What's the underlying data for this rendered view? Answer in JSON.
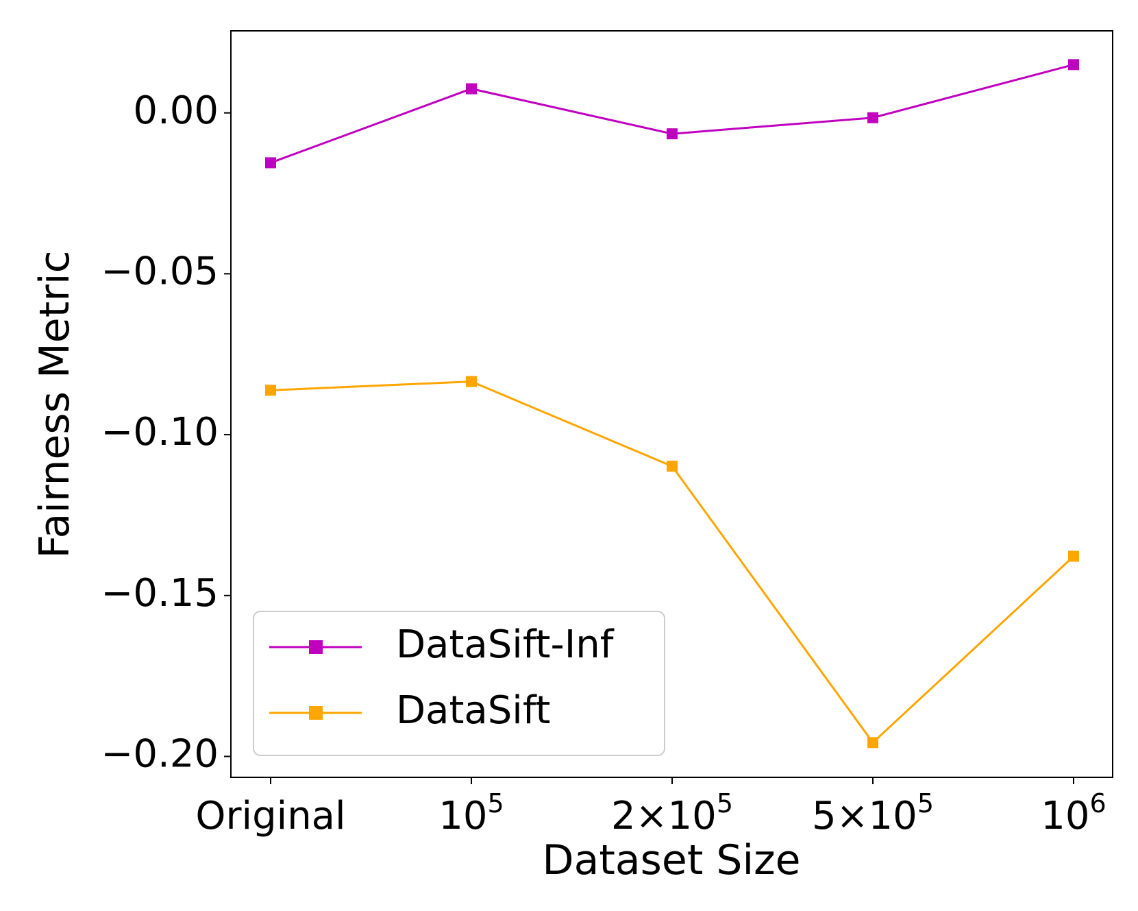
{
  "chart_data": {
    "type": "line",
    "title": "",
    "xlabel": "Dataset Size",
    "ylabel": "Fairness Metric",
    "categories": [
      "Original",
      "10^5",
      "2×10^5",
      "5×10^5",
      "10^6"
    ],
    "x_tick_labels": [
      {
        "base": "Original",
        "sup": ""
      },
      {
        "base": "10",
        "sup": "5"
      },
      {
        "base": "2×10",
        "sup": "5"
      },
      {
        "base": "5×10",
        "sup": "5"
      },
      {
        "base": "10",
        "sup": "6"
      }
    ],
    "y_ticks": [
      0.0,
      -0.05,
      -0.1,
      -0.15,
      -0.2
    ],
    "y_tick_labels": [
      "0.00",
      "−0.05",
      "−0.10",
      "−0.15",
      "−0.20"
    ],
    "ylim": [
      -0.2065,
      0.0255
    ],
    "grid": false,
    "legend_position": "lower-left",
    "series": [
      {
        "name": "DataSift-Inf",
        "color": "#bf00bf",
        "marker": "square",
        "values": [
          -0.0155,
          0.0075,
          -0.0065,
          -0.0015,
          0.015
        ]
      },
      {
        "name": "DataSift",
        "color": "#ffa500",
        "marker": "square",
        "values": [
          -0.0862,
          -0.0835,
          -0.1098,
          -0.1957,
          -0.1378
        ]
      }
    ]
  }
}
